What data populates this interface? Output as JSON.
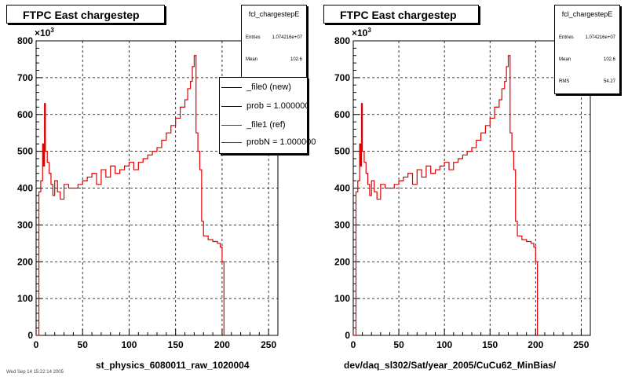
{
  "colors": {
    "new_series": "#000000",
    "ref_series": "#dd0000",
    "frame": "#000000"
  },
  "chart_data": [
    {
      "type": "line",
      "title": "FTPC East chargestep",
      "histogram_name": "fcl_chargestepE",
      "xlabel": "st_physics_6080011_raw_1020004",
      "ylabel": "",
      "y_exponent_label": "×10",
      "y_exponent_power": "3",
      "xlim": [
        0,
        260
      ],
      "ylim": [
        0,
        800
      ],
      "x_ticks": [
        "0",
        "50",
        "100",
        "150",
        "200",
        "250"
      ],
      "y_ticks": [
        "0",
        "100",
        "200",
        "300",
        "400",
        "500",
        "600",
        "700",
        "800"
      ],
      "grid": true,
      "stats": [
        {
          "label": "Entries",
          "value": "1.074216e+07"
        },
        {
          "label": "Mean",
          "value": "102.6"
        }
      ],
      "legend_position": "top-right",
      "legend": [
        {
          "name": "_file0 (new)",
          "color": "#000000"
        },
        {
          "name": "prob = 1.000000",
          "color": "#000000"
        },
        {
          "name": "_file1 (ref)",
          "color": "#dd0000"
        },
        {
          "name": "probN = 1.000000",
          "color": "#dd0000"
        }
      ],
      "series": [
        {
          "name": "_file1 (ref)",
          "x": [
            0,
            3,
            5,
            7,
            8,
            9,
            10,
            12,
            14,
            16,
            18,
            20,
            23,
            26,
            30,
            35,
            40,
            45,
            50,
            55,
            60,
            65,
            70,
            75,
            80,
            85,
            90,
            95,
            100,
            105,
            110,
            115,
            120,
            125,
            130,
            135,
            140,
            145,
            150,
            155,
            160,
            163,
            166,
            168,
            170,
            172,
            174,
            176,
            178,
            180,
            185,
            190,
            195,
            198,
            200,
            202
          ],
          "y": [
            0,
            390,
            420,
            520,
            460,
            630,
            500,
            470,
            440,
            410,
            380,
            420,
            390,
            370,
            410,
            400,
            400,
            410,
            420,
            430,
            440,
            410,
            450,
            430,
            460,
            440,
            450,
            460,
            470,
            450,
            470,
            480,
            490,
            500,
            510,
            530,
            550,
            570,
            590,
            620,
            640,
            670,
            690,
            730,
            760,
            550,
            500,
            450,
            310,
            270,
            260,
            255,
            250,
            240,
            200,
            0
          ]
        }
      ]
    },
    {
      "type": "line",
      "title": "FTPC East chargestep",
      "histogram_name": "fcl_chargestepE",
      "xlabel": "dev/daq_sl302/Sat/year_2005/CuCu62_MinBias/",
      "ylabel": "",
      "y_exponent_label": "×10",
      "y_exponent_power": "3",
      "xlim": [
        0,
        260
      ],
      "ylim": [
        0,
        800
      ],
      "x_ticks": [
        "0",
        "50",
        "100",
        "150",
        "200",
        "250"
      ],
      "y_ticks": [
        "0",
        "100",
        "200",
        "300",
        "400",
        "500",
        "600",
        "700",
        "800"
      ],
      "grid": true,
      "stats": [
        {
          "label": "Entries",
          "value": "1.074216e+07"
        },
        {
          "label": "Mean",
          "value": "102.6"
        },
        {
          "label": "RMS",
          "value": "54.27"
        }
      ],
      "series": [
        {
          "name": "_file1 (ref)",
          "x": [
            0,
            3,
            5,
            7,
            8,
            9,
            10,
            12,
            14,
            16,
            18,
            20,
            23,
            26,
            30,
            35,
            40,
            45,
            50,
            55,
            60,
            65,
            70,
            75,
            80,
            85,
            90,
            95,
            100,
            105,
            110,
            115,
            120,
            125,
            130,
            135,
            140,
            145,
            150,
            155,
            160,
            163,
            166,
            168,
            170,
            172,
            174,
            176,
            178,
            180,
            185,
            190,
            195,
            198,
            200,
            202
          ],
          "y": [
            0,
            390,
            420,
            520,
            460,
            630,
            500,
            470,
            440,
            410,
            380,
            420,
            390,
            370,
            410,
            400,
            400,
            410,
            420,
            430,
            440,
            410,
            450,
            430,
            460,
            440,
            450,
            460,
            470,
            450,
            470,
            480,
            490,
            500,
            510,
            530,
            550,
            570,
            590,
            620,
            640,
            670,
            690,
            730,
            760,
            550,
            500,
            450,
            310,
            270,
            260,
            255,
            250,
            240,
            200,
            0
          ]
        }
      ]
    }
  ],
  "footer": "Wed Sep 14 15:22:14 2005"
}
